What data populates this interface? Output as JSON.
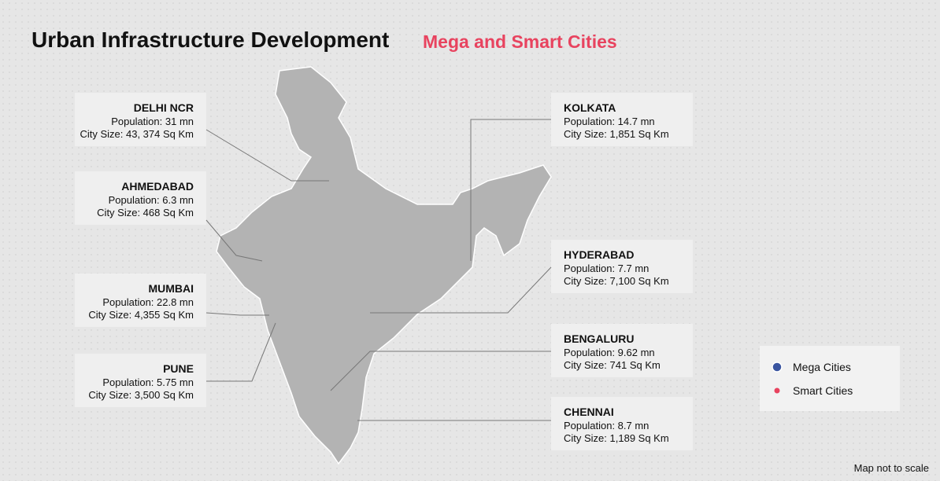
{
  "title": "Urban Infrastructure Development",
  "subtitle": "Mega and Smart Cities",
  "cities": [
    {
      "name": "DELHI NCR",
      "population": "Population: 31 mn",
      "size": "City Size: 43, 374 Sq Km"
    },
    {
      "name": "AHMEDABAD",
      "population": "Population: 6.3 mn",
      "size": "City Size: 468 Sq Km"
    },
    {
      "name": "MUMBAI",
      "population": "Population: 22.8 mn",
      "size": "City Size: 4,355 Sq Km"
    },
    {
      "name": "PUNE",
      "population": "Population: 5.75 mn",
      "size": "City Size: 3,500 Sq Km"
    },
    {
      "name": "KOLKATA",
      "population": "Population: 14.7 mn",
      "size": "City Size: 1,851 Sq Km"
    },
    {
      "name": "HYDERABAD",
      "population": "Population: 7.7 mn",
      "size": "City Size: 7,100 Sq Km"
    },
    {
      "name": "BENGALURU",
      "population": "Population: 9.62 mn",
      "size": "City Size: 741 Sq Km"
    },
    {
      "name": "CHENNAI",
      "population": "Population: 8.7 mn",
      "size": "City Size: 1,189 Sq Km"
    }
  ],
  "legend": [
    "Mega Cities",
    "Smart Cities"
  ],
  "note": "Map not to scale"
}
